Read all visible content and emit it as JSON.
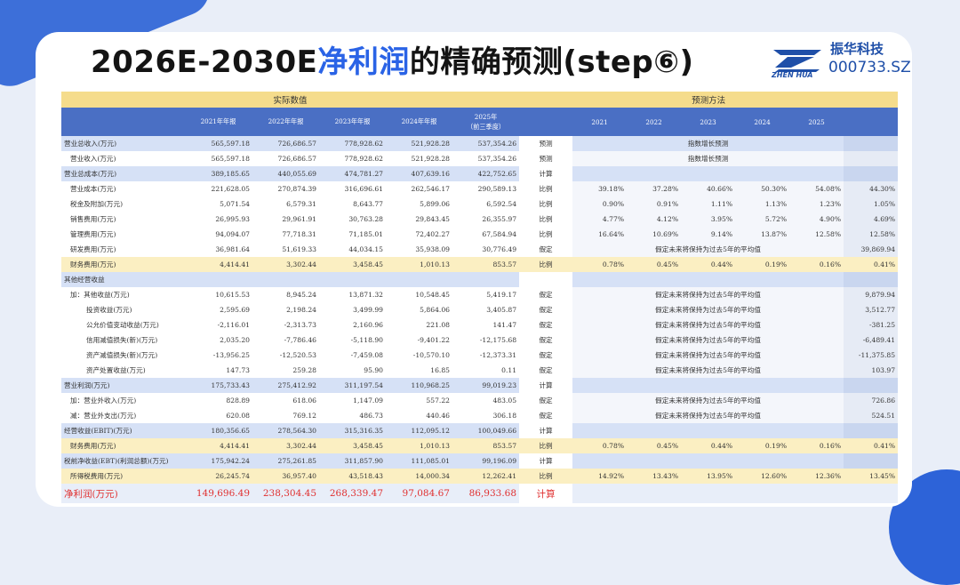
{
  "title": {
    "part1": "2026E-2030E",
    "highlight": "净利润",
    "part2": "的精确预测(step⑥)"
  },
  "logo": {
    "cn": "振华科技",
    "code": "000733.SZ",
    "en": "ZHEN HUA"
  },
  "colors": {
    "accent": "#2a63e6",
    "header_blue": "#4a6fc4",
    "header_yellow": "#f5dc8c",
    "net_profit_red": "#e03030"
  },
  "table": {
    "group_actual": "实际数值",
    "group_predict": "预测方法",
    "years_actual": [
      "2021年年报",
      "2022年年报",
      "2023年年报",
      "2024年年报"
    ],
    "year_2025_top": "2025年",
    "year_2025_bottom": "（前三季度）",
    "years_predict": [
      "2021",
      "2022",
      "2023",
      "2024",
      "2025"
    ],
    "rows": [
      {
        "label": "营业总收入(万元)",
        "v": [
          "565,597.18",
          "726,686.57",
          "778,928.62",
          "521,928.28",
          "537,354.26"
        ],
        "method": "预测",
        "note": "指数增长预测",
        "style": "blue"
      },
      {
        "label": "营业收入(万元)",
        "v": [
          "565,597.18",
          "726,686.57",
          "778,928.62",
          "521,928.28",
          "537,354.26"
        ],
        "method": "预测",
        "note": "指数增长预测",
        "indent": 1
      },
      {
        "label": "营业总成本(万元)",
        "v": [
          "389,185.65",
          "440,055.69",
          "474,781.27",
          "407,639.16",
          "422,752.65"
        ],
        "method": "计算",
        "style": "blue"
      },
      {
        "label": "营业成本(万元)",
        "v": [
          "221,628.05",
          "270,874.39",
          "316,696.61",
          "262,546.17",
          "290,589.13"
        ],
        "method": "比例",
        "p": [
          "39.18%",
          "37.28%",
          "40.66%",
          "50.30%",
          "54.08%"
        ],
        "last": "44.30%",
        "indent": 1
      },
      {
        "label": "税金及附加(万元)",
        "v": [
          "5,071.54",
          "6,579.31",
          "8,643.77",
          "5,899.06",
          "6,592.54"
        ],
        "method": "比例",
        "p": [
          "0.90%",
          "0.91%",
          "1.11%",
          "1.13%",
          "1.23%"
        ],
        "last": "1.05%",
        "indent": 1
      },
      {
        "label": "销售费用(万元)",
        "v": [
          "26,995.93",
          "29,961.91",
          "30,763.28",
          "29,843.45",
          "26,355.97"
        ],
        "method": "比例",
        "p": [
          "4.77%",
          "4.12%",
          "3.95%",
          "5.72%",
          "4.90%"
        ],
        "last": "4.69%",
        "indent": 1
      },
      {
        "label": "管理费用(万元)",
        "v": [
          "94,094.07",
          "77,718.31",
          "71,185.01",
          "72,402.27",
          "67,584.94"
        ],
        "method": "比例",
        "p": [
          "16.64%",
          "10.69%",
          "9.14%",
          "13.87%",
          "12.58%"
        ],
        "last": "12.58%",
        "indent": 1
      },
      {
        "label": "研发费用(万元)",
        "v": [
          "36,981.64",
          "51,619.33",
          "44,034.15",
          "35,938.09",
          "30,776.49"
        ],
        "method": "假定",
        "note": "假定未来将保持为过去5年的平均值",
        "last": "39,869.94",
        "indent": 1
      },
      {
        "label": "财务费用(万元)",
        "v": [
          "4,414.41",
          "3,302.44",
          "3,458.45",
          "1,010.13",
          "853.57"
        ],
        "method": "比例",
        "p": [
          "0.78%",
          "0.45%",
          "0.44%",
          "0.19%",
          "0.16%"
        ],
        "last": "0.41%",
        "indent": 1,
        "style": "yellow"
      },
      {
        "label": "其他经营收益",
        "v": [
          "",
          "",
          "",
          "",
          ""
        ],
        "method": "",
        "style": "blue"
      },
      {
        "label": "加：其他收益(万元)",
        "v": [
          "10,615.53",
          "8,945.24",
          "13,871.32",
          "10,548.45",
          "5,419.17"
        ],
        "method": "假定",
        "note": "假定未来将保持为过去5年的平均值",
        "last": "9,879.94",
        "indent": 1
      },
      {
        "label": "投资收益(万元)",
        "v": [
          "2,595.69",
          "2,198.24",
          "3,499.99",
          "5,864.06",
          "3,405.87"
        ],
        "method": "假定",
        "note": "假定未来将保持为过去5年的平均值",
        "last": "3,512.77",
        "indent": 2
      },
      {
        "label": "公允价值变动收益(万元)",
        "v": [
          "-2,116.01",
          "-2,313.73",
          "2,160.96",
          "221.08",
          "141.47"
        ],
        "method": "假定",
        "note": "假定未来将保持为过去5年的平均值",
        "last": "-381.25",
        "indent": 2
      },
      {
        "label": "信用减值损失(新)(万元)",
        "v": [
          "2,035.20",
          "-7,786.46",
          "-5,118.90",
          "-9,401.22",
          "-12,175.68"
        ],
        "method": "假定",
        "note": "假定未来将保持为过去5年的平均值",
        "last": "-6,489.41",
        "indent": 2
      },
      {
        "label": "资产减值损失(新)(万元)",
        "v": [
          "-13,956.25",
          "-12,520.53",
          "-7,459.08",
          "-10,570.10",
          "-12,373.31"
        ],
        "method": "假定",
        "note": "假定未来将保持为过去5年的平均值",
        "last": "-11,375.85",
        "indent": 2
      },
      {
        "label": "资产处置收益(万元)",
        "v": [
          "147.73",
          "259.28",
          "95.90",
          "16.85",
          "0.11"
        ],
        "method": "假定",
        "note": "假定未来将保持为过去5年的平均值",
        "last": "103.97",
        "indent": 2
      },
      {
        "label": "营业利润(万元)",
        "v": [
          "175,733.43",
          "275,412.92",
          "311,197.54",
          "110,968.25",
          "99,019.23"
        ],
        "method": "计算",
        "style": "blue"
      },
      {
        "label": "加：营业外收入(万元)",
        "v": [
          "828.89",
          "618.06",
          "1,147.09",
          "557.22",
          "483.05"
        ],
        "method": "假定",
        "note": "假定未来将保持为过去5年的平均值",
        "last": "726.86",
        "indent": 1
      },
      {
        "label": "减：营业外支出(万元)",
        "v": [
          "620.08",
          "769.12",
          "486.73",
          "440.46",
          "306.18"
        ],
        "method": "假定",
        "note": "假定未来将保持为过去5年的平均值",
        "last": "524.51",
        "indent": 1
      },
      {
        "label": "经营收益(EBIT)(万元)",
        "v": [
          "180,356.65",
          "278,564.30",
          "315,316.35",
          "112,095.12",
          "100,049.66"
        ],
        "method": "计算",
        "style": "blue"
      },
      {
        "label": "财务费用(万元)",
        "v": [
          "4,414.41",
          "3,302.44",
          "3,458.45",
          "1,010.13",
          "853.57"
        ],
        "method": "比例",
        "p": [
          "0.78%",
          "0.45%",
          "0.44%",
          "0.19%",
          "0.16%"
        ],
        "last": "0.41%",
        "indent": 1,
        "style": "yellow"
      },
      {
        "label": "税前净收益(EBT)(利润总额)(万元)",
        "v": [
          "175,942.24",
          "275,261.85",
          "311,857.90",
          "111,085.01",
          "99,196.09"
        ],
        "method": "计算",
        "style": "blue"
      },
      {
        "label": "所得税费用(万元)",
        "v": [
          "26,245.74",
          "36,957.40",
          "43,518.43",
          "14,000.34",
          "12,262.41"
        ],
        "method": "比例",
        "p": [
          "14.92%",
          "13.43%",
          "13.95%",
          "12.60%",
          "12.36%"
        ],
        "last": "13.45%",
        "indent": 1,
        "style": "yellow"
      },
      {
        "label": "净利润(万元)",
        "v": [
          "149,696.49",
          "238,304.45",
          "268,339.47",
          "97,084.67",
          "86,933.68"
        ],
        "method": "计算",
        "style": "net"
      }
    ]
  }
}
